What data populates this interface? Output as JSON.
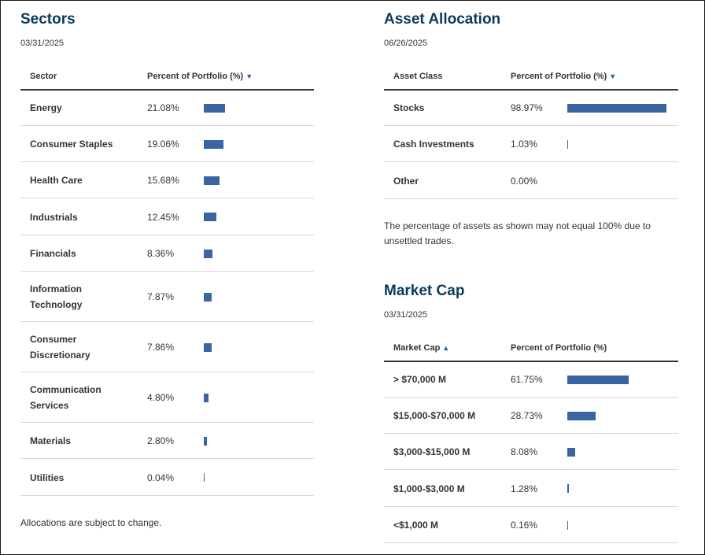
{
  "sectors": {
    "title": "Sectors",
    "date": "03/31/2025",
    "col_sector": "Sector",
    "col_percent": "Percent of Portfolio (%)",
    "rows": [
      {
        "label": "Energy",
        "value": "21.08%",
        "pct": 21.08
      },
      {
        "label": "Consumer Staples",
        "value": "19.06%",
        "pct": 19.06
      },
      {
        "label": "Health Care",
        "value": "15.68%",
        "pct": 15.68
      },
      {
        "label": "Industrials",
        "value": "12.45%",
        "pct": 12.45
      },
      {
        "label": "Financials",
        "value": "8.36%",
        "pct": 8.36
      },
      {
        "label": "Information Technology",
        "value": "7.87%",
        "pct": 7.87
      },
      {
        "label": "Consumer Discretionary",
        "value": "7.86%",
        "pct": 7.86
      },
      {
        "label": "Communication Services",
        "value": "4.80%",
        "pct": 4.8
      },
      {
        "label": "Materials",
        "value": "2.80%",
        "pct": 2.8
      },
      {
        "label": "Utilities",
        "value": "0.04%",
        "pct": 0.04
      }
    ],
    "footnote": "Allocations are subject to change."
  },
  "asset_allocation": {
    "title": "Asset Allocation",
    "date": "06/26/2025",
    "col_class": "Asset Class",
    "col_percent": "Percent of Portfolio (%)",
    "rows": [
      {
        "label": "Stocks",
        "value": "98.97%",
        "pct": 98.97
      },
      {
        "label": "Cash Investments",
        "value": "1.03%",
        "pct": 1.03
      },
      {
        "label": "Other",
        "value": "0.00%",
        "pct": 0.0
      }
    ],
    "note": "The percentage of assets as shown may not equal 100% due to unsettled trades."
  },
  "market_cap": {
    "title": "Market Cap",
    "date": "03/31/2025",
    "col_cap": "Market Cap",
    "col_percent": "Percent of Portfolio (%)",
    "rows": [
      {
        "label": "> $70,000 M",
        "value": "61.75%",
        "pct": 61.75
      },
      {
        "label": "$15,000-$70,000 M",
        "value": "28.73%",
        "pct": 28.73
      },
      {
        "label": "$3,000-$15,000 M",
        "value": "8.08%",
        "pct": 8.08
      },
      {
        "label": "$1,000-$3,000 M",
        "value": "1.28%",
        "pct": 1.28
      },
      {
        "label": "<$1,000 M",
        "value": "0.16%",
        "pct": 0.16
      }
    ]
  },
  "colors": {
    "accent": "#0a3a5c",
    "bar": "#3b65a2",
    "sort_arrow": "#1f5f9c"
  }
}
